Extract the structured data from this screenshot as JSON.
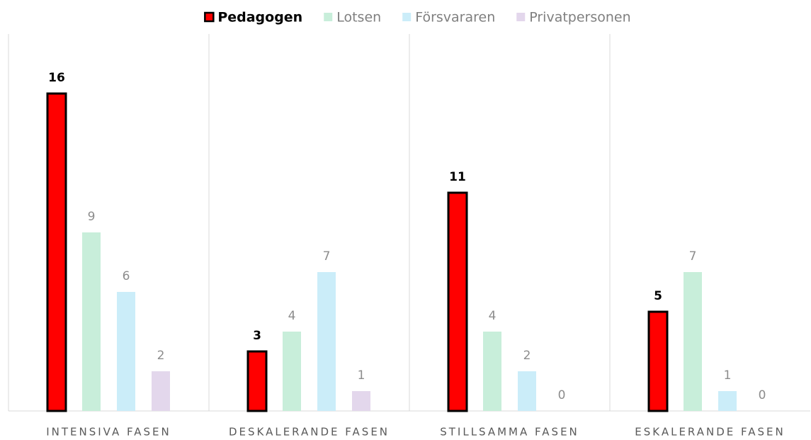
{
  "chart_data": {
    "type": "bar",
    "categories": [
      "INTENSIVA FASEN",
      "DESKALERANDE FASEN",
      "STILLSAMMA FASEN",
      "ESKALERANDE FASEN"
    ],
    "series": [
      {
        "name": "Pedagogen",
        "color": "#ff0000",
        "edgecolor": "#000000",
        "values": [
          16,
          3,
          11,
          5
        ]
      },
      {
        "name": "Lotsen",
        "color": "#c8eeda",
        "values": [
          9,
          4,
          4,
          7
        ]
      },
      {
        "name": "Försvararen",
        "color": "#cbedf9",
        "values": [
          6,
          7,
          2,
          1
        ]
      },
      {
        "name": "Privatpersonen",
        "color": "#e3d7ec",
        "values": [
          2,
          1,
          0,
          0
        ]
      }
    ],
    "ylim": [
      0,
      18
    ],
    "legend": "top"
  }
}
